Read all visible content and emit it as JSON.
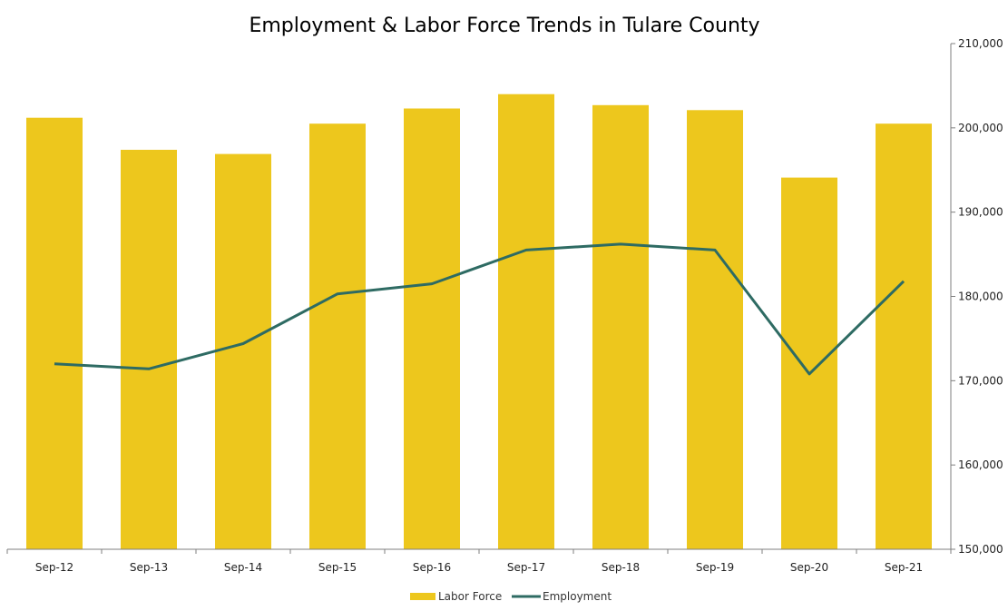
{
  "chart_data": {
    "type": "bar",
    "title": "Employment & Labor Force Trends in Tulare County",
    "categories": [
      "Sep-12",
      "Sep-13",
      "Sep-14",
      "Sep-15",
      "Sep-16",
      "Sep-17",
      "Sep-18",
      "Sep-19",
      "Sep-20",
      "Sep-21"
    ],
    "series": [
      {
        "name": "Labor Force",
        "kind": "bar",
        "axis": "right",
        "color": "#EDC71D",
        "values": [
          201200,
          197400,
          196900,
          200500,
          202300,
          204000,
          202700,
          202100,
          194100,
          200500
        ]
      },
      {
        "name": "Employment",
        "kind": "line",
        "axis": "right",
        "color": "#2E6B63",
        "values": [
          172000,
          171400,
          174400,
          180300,
          181500,
          185500,
          186200,
          185500,
          170800,
          181800
        ]
      }
    ],
    "y_axis": {
      "position": "right",
      "ylim": [
        150000,
        210000
      ],
      "ticks": [
        150000,
        160000,
        170000,
        180000,
        190000,
        200000,
        210000
      ],
      "tick_labels": [
        "150,000",
        "160,000",
        "170,000",
        "180,000",
        "190,000",
        "200,000",
        "210,000"
      ]
    },
    "xlabel": "",
    "ylabel": "",
    "grid": false,
    "legend": "bottom-center"
  }
}
